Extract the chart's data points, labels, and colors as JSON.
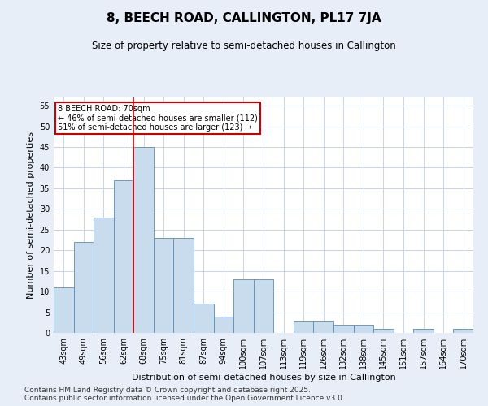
{
  "title": "8, BEECH ROAD, CALLINGTON, PL17 7JA",
  "subtitle": "Size of property relative to semi-detached houses in Callington",
  "xlabel": "Distribution of semi-detached houses by size in Callington",
  "ylabel": "Number of semi-detached properties",
  "categories": [
    "43sqm",
    "49sqm",
    "56sqm",
    "62sqm",
    "68sqm",
    "75sqm",
    "81sqm",
    "87sqm",
    "94sqm",
    "100sqm",
    "107sqm",
    "113sqm",
    "119sqm",
    "126sqm",
    "132sqm",
    "138sqm",
    "145sqm",
    "151sqm",
    "157sqm",
    "164sqm",
    "170sqm"
  ],
  "values": [
    11,
    22,
    28,
    37,
    45,
    23,
    23,
    7,
    4,
    13,
    13,
    0,
    3,
    3,
    2,
    2,
    1,
    0,
    1,
    0,
    1
  ],
  "bar_color": "#c9dced",
  "bar_edge_color": "#5b8db8",
  "highlight_index": 4,
  "highlight_line_color": "#cc0000",
  "annotation_text": "8 BEECH ROAD: 70sqm\n← 46% of semi-detached houses are smaller (112)\n51% of semi-detached houses are larger (123) →",
  "annotation_box_color": "#cc0000",
  "ylim": [
    0,
    57
  ],
  "yticks": [
    0,
    5,
    10,
    15,
    20,
    25,
    30,
    35,
    40,
    45,
    50,
    55
  ],
  "footer": "Contains HM Land Registry data © Crown copyright and database right 2025.\nContains public sector information licensed under the Open Government Licence v3.0.",
  "bg_color": "#e8eef7",
  "plot_bg_color": "#ffffff",
  "grid_color": "#c8d4e4",
  "title_fontsize": 11,
  "subtitle_fontsize": 8.5,
  "axis_label_fontsize": 8,
  "tick_fontsize": 7,
  "footer_fontsize": 6.5
}
